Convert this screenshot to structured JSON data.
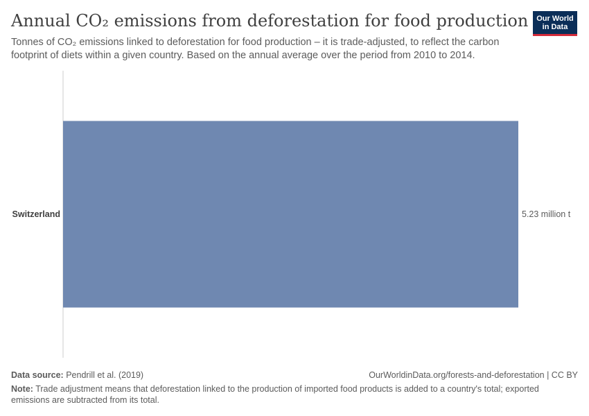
{
  "header": {
    "title": "Annual CO₂ emissions from deforestation for food production",
    "subtitle": "Tonnes of CO₂ emissions linked to deforestation for food production – it is trade-adjusted, to reflect the carbon footprint of diets within a given country. Based on the annual average over the period from 2010 to 2014."
  },
  "logo": {
    "line1": "Our World",
    "line2": "in Data",
    "background": "#0b2e58",
    "accent": "#d42b3a"
  },
  "chart_data": {
    "type": "bar",
    "orientation": "horizontal",
    "categories": [
      "Switzerland"
    ],
    "values": [
      5230000
    ],
    "value_labels": [
      "5.23 million t"
    ],
    "xlim": [
      0,
      5230000
    ],
    "bar_color": "#6f88b1",
    "grid": false
  },
  "footer": {
    "source_label": "Data source:",
    "source_text": "Pendrill et al. (2019)",
    "url": "OurWorldinData.org/forests-and-deforestation | CC BY",
    "note_label": "Note:",
    "note_text": "Trade adjustment means that deforestation linked to the production of imported food products is added to a country's total; exported emissions are subtracted from its total."
  }
}
